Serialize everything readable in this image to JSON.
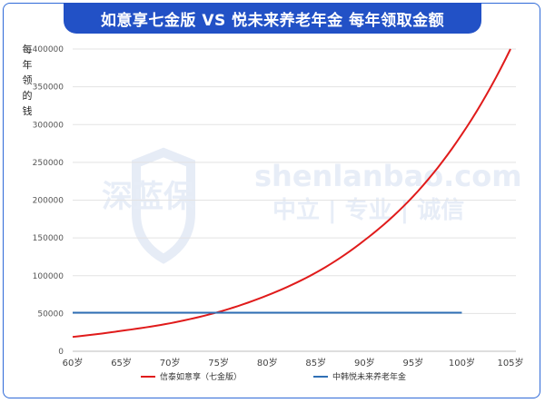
{
  "title": "如意享七金版 VS 悦未来养老年金 每年领取金额",
  "ylabel": "每年领的钱",
  "watermark": {
    "logo_text": "深蓝保",
    "site": "shenlanbao.com",
    "slogan": "中立 | 专业 | 诚信"
  },
  "chart_data": {
    "type": "line",
    "x": [
      "60岁",
      "65岁",
      "70岁",
      "75岁",
      "80岁",
      "85岁",
      "90岁",
      "95岁",
      "100岁",
      "105岁"
    ],
    "ylim": [
      0,
      400000
    ],
    "yticks": [
      0,
      50000,
      100000,
      150000,
      200000,
      250000,
      300000,
      350000,
      400000
    ],
    "grid": true,
    "legend": "bottom",
    "series": [
      {
        "name": "信泰如意享（七金版）",
        "color": "#e01b1b",
        "values": [
          19000,
          27000,
          37000,
          52000,
          74000,
          104000,
          147000,
          205000,
          287000,
          400000
        ]
      },
      {
        "name": "中韩悦未来养老年金",
        "color": "#2f6fb5",
        "values": [
          51000,
          51000,
          51000,
          51000,
          51000,
          51000,
          51000,
          51000,
          51000,
          null
        ]
      }
    ]
  }
}
